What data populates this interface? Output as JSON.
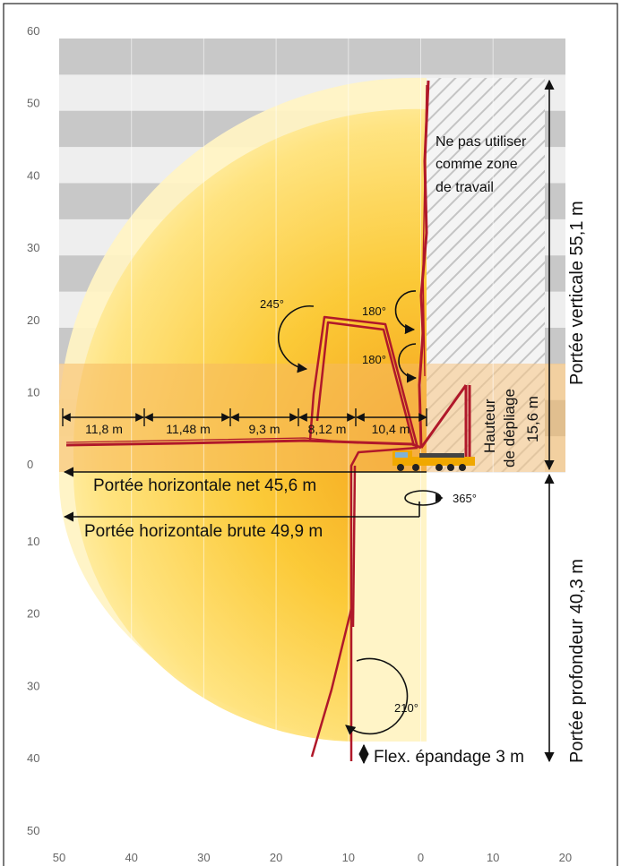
{
  "axes": {
    "y_ticks_top": [
      "60",
      "50",
      "40",
      "30",
      "20",
      "10",
      "0"
    ],
    "y_ticks_bottom": [
      "10",
      "20",
      "30",
      "40",
      "50"
    ],
    "x_ticks": [
      "50",
      "40",
      "30",
      "20",
      "10",
      "0",
      "10",
      "20"
    ]
  },
  "labels": {
    "no_work_zone": [
      "Ne pas utiliser",
      "comme zone",
      "de travail"
    ],
    "vertical_reach": "Portée verticale 55,1 m",
    "depth_reach": "Portée profondeur 40,3 m",
    "unfold_height": [
      "Hauteur",
      "de dépliage",
      "15,6 m"
    ],
    "horizontal_net": "Portée horizontale net 45,6 m",
    "horizontal_gross": "Portée horizontale brute 49,9 m",
    "flex_hose": "Flex. épandage 3 m",
    "slew": "365°"
  },
  "segments": [
    "11,8 m",
    "11,48 m",
    "9,3 m",
    "8,12 m",
    "10,4 m"
  ],
  "angles": {
    "a245": "245°",
    "a180_top": "180°",
    "a180_bottom": "180°",
    "a210": "210°"
  },
  "colors": {
    "boom": "#b0182a",
    "reach_yellow": "#ffd23a",
    "reach_orange": "#f7a81b",
    "unfold_band": "#f6c88a",
    "grid_dark": "#c8c8c8",
    "grid_light": "#eeeeee",
    "hatch": "#bbbbbb",
    "truck": "#f0a800"
  }
}
